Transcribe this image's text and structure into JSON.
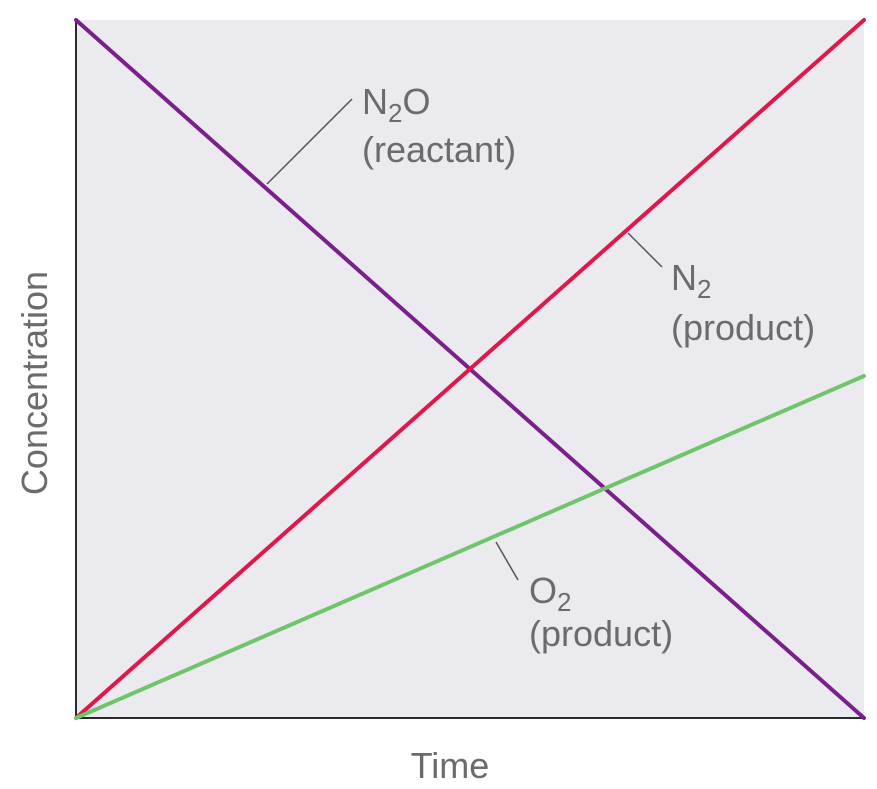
{
  "chart_data": {
    "type": "line",
    "xlabel": "Time",
    "ylabel": "Concentration",
    "xlim": [
      0,
      1
    ],
    "ylim": [
      0,
      1
    ],
    "grid": false,
    "legend": "none",
    "plot_background": "#ebebef",
    "series": [
      {
        "key": "n2o",
        "color": "#7b1f8c",
        "points": [
          [
            0,
            1
          ],
          [
            1,
            0
          ]
        ],
        "label_main": "N",
        "label_sub": "2",
        "label_tail": "O",
        "label_second": "(reactant)"
      },
      {
        "key": "n2",
        "color": "#e0174a",
        "points": [
          [
            0,
            0
          ],
          [
            1,
            1
          ]
        ],
        "label_main": "N",
        "label_sub": "2",
        "label_tail": "",
        "label_second": "(product)"
      },
      {
        "key": "o2",
        "color": "#6fc46c",
        "points": [
          [
            0,
            0
          ],
          [
            1,
            0.49
          ]
        ],
        "label_main": "O",
        "label_sub": "2",
        "label_tail": "",
        "label_second": "(product)"
      }
    ]
  }
}
